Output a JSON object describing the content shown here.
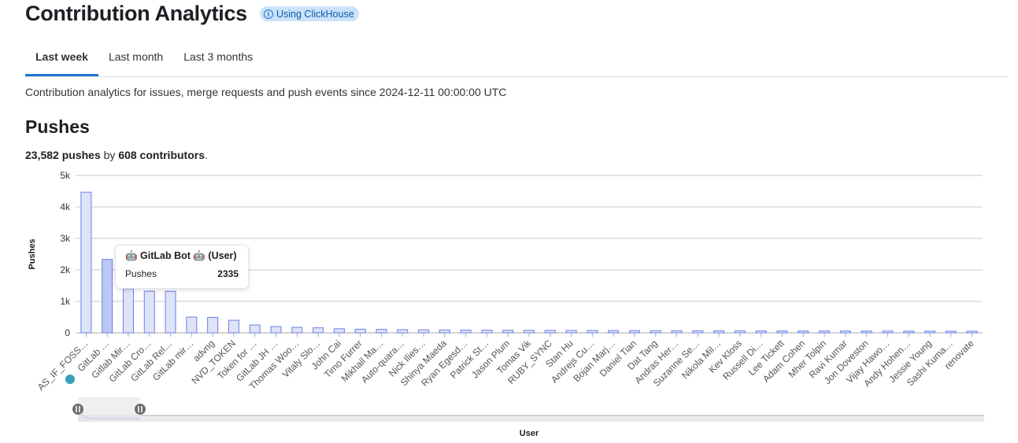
{
  "header": {
    "title": "Contribution Analytics",
    "badge": "Using ClickHouse",
    "badge_icon": "info-icon"
  },
  "tabs": [
    {
      "label": "Last week",
      "active": true
    },
    {
      "label": "Last month"
    },
    {
      "label": "Last 3 months"
    }
  ],
  "description": "Contribution analytics for issues, merge requests and push events since 2024-12-11 00:00:00 UTC",
  "section": {
    "title": "Pushes",
    "pushes": "23,582 pushes",
    "by": " by ",
    "contributors": "608 contributors",
    "period": "."
  },
  "tooltip": {
    "title": "🤖 GitLab Bot 🤖 (User)",
    "label": "Pushes",
    "value": "2335"
  },
  "colors": {
    "bar_fill": "#dfe3f8",
    "bar_stroke": "#6a7fe6",
    "bar_hover": "#bcc6f2",
    "accent": "#1f75cb"
  },
  "chart_data": {
    "type": "bar",
    "xlabel": "User",
    "ylabel": "Pushes",
    "ylim": [
      0,
      5000
    ],
    "yticks": [
      "0",
      "1k",
      "2k",
      "3k",
      "4k",
      "5k"
    ],
    "grid": true,
    "categories": [
      "AS_IF_FOSS…",
      "GitLab …",
      "Gitlab Mir…",
      "GitLab Cro…",
      "GitLab Rel…",
      "GitLab mir…",
      "advng",
      "NVD_TOKEN",
      "Token for …",
      "GitLab JH …",
      "Thomas Woo…",
      "Vitaly Slo…",
      "John Cai",
      "Timo Furrer",
      "Mikhail Ma…",
      "Auto-quara…",
      "Nick Ilies…",
      "Shinya Maeda",
      "Ryan Egesd…",
      "Patrick St…",
      "Jason Plum",
      "Tomas Vik",
      "RUBY_SYNC",
      "Stan Hu",
      "Andrejs Cu…",
      "Bojan Marj…",
      "Daniel Tian",
      "Dat Tang",
      "Andras Her…",
      "Suzanne Se…",
      "Nikola Mil…",
      "Kev Kloss",
      "Russell Di…",
      "Lee Tickett",
      "Adam Cohen",
      "Mher Tolpin",
      "Ravi Kumar",
      "Jon Doveston",
      "Vijay Hawo…",
      "Andy Hohen…",
      "Jessie Young",
      "Sashi Kuma…",
      "renovate"
    ],
    "values": [
      4470,
      2335,
      1400,
      1325,
      1320,
      500,
      490,
      400,
      250,
      200,
      175,
      160,
      130,
      115,
      110,
      100,
      95,
      92,
      88,
      85,
      82,
      80,
      78,
      76,
      74,
      72,
      70,
      68,
      66,
      64,
      63,
      62,
      61,
      60,
      59,
      58,
      57,
      56,
      55,
      54,
      53,
      52,
      51
    ],
    "highlighted_index": 1
  }
}
